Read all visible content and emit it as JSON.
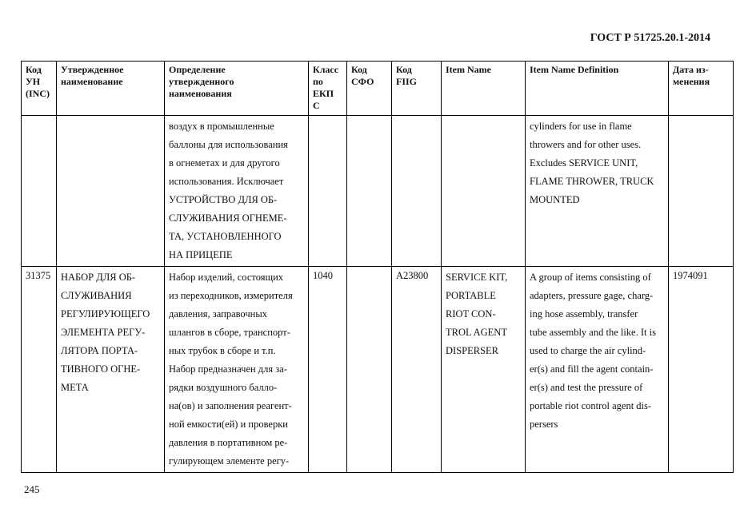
{
  "header": {
    "doc_title": "ГОСТ Р 51725.20.1-2014"
  },
  "page_number": "245",
  "table": {
    "columns": [
      "Код УН (INC)",
      "Утвержденное наименование",
      "Определение утвержденного наименования",
      "Класс по ЕКП С",
      "Код СФО",
      "Код FIIG",
      "Item Name",
      "Item Name Definition",
      "Дата из-менения"
    ],
    "column_lines": [
      [
        "Код",
        "УН",
        "(INC)"
      ],
      [
        "Утвержденное",
        "наименование"
      ],
      [
        "Определение",
        "утвержденного",
        "наименования"
      ],
      [
        "Класс",
        "по",
        "ЕКП",
        "С"
      ],
      [
        "Код",
        "СФО"
      ],
      [
        "Код",
        "FIIG"
      ],
      [
        "Item Name"
      ],
      [
        "Item Name Definition"
      ],
      [
        "Дата из-",
        "менения"
      ]
    ],
    "rows": [
      {
        "cells": [
          [],
          [],
          [
            "воздух в промышленные",
            "баллоны для использования",
            "в огнеметах и для другого",
            "использования. Исключает",
            "УСТРОЙСТВО ДЛЯ ОБ-",
            "СЛУЖИВАНИЯ ОГНЕМЕ-",
            "ТА, УСТАНОВЛЕННОГО",
            "НА ПРИЦЕПЕ"
          ],
          [],
          [],
          [],
          [],
          [
            "cylinders for use in flame",
            "throwers and for other uses.",
            "Excludes SERVICE UNIT,",
            "FLAME THROWER, TRUCK",
            "MOUNTED"
          ],
          []
        ]
      },
      {
        "cells": [
          [
            "31375"
          ],
          [
            "НАБОР ДЛЯ ОБ-",
            "СЛУЖИВАНИЯ",
            "РЕГУЛИРУЮЩЕГО",
            "ЭЛЕМЕНТА РЕГУ-",
            "ЛЯТОРА ПОРТА-",
            "ТИВНОГО ОГНЕ-",
            "МЕТА"
          ],
          [
            "Набор изделий, состоящих",
            "из переходников, измерителя",
            "давления, заправочных",
            "шлангов в сборе, транспорт-",
            "ных трубок в сборе и т.п.",
            "Набор предназначен для за-",
            "рядки воздушного балло-",
            "на(ов) и заполнения реагент-",
            "ной емкости(ей) и проверки",
            "давления в портативном ре-",
            "гулирующем элементе регу-"
          ],
          [
            "1040"
          ],
          [],
          [
            "A23800"
          ],
          [
            "SERVICE KIT,",
            "PORTABLE",
            "RIOT CON-",
            "TROL AGENT",
            "DISPERSER"
          ],
          [
            "A group of items consisting of",
            "adapters, pressure gage, charg-",
            "ing hose assembly, transfer",
            "tube assembly and the like. It is",
            "used to charge the air cylind-",
            "er(s) and fill the agent contain-",
            "er(s) and test the pressure of",
            "portable riot control agent dis-",
            "persers"
          ],
          [
            "1974091"
          ]
        ]
      }
    ]
  }
}
